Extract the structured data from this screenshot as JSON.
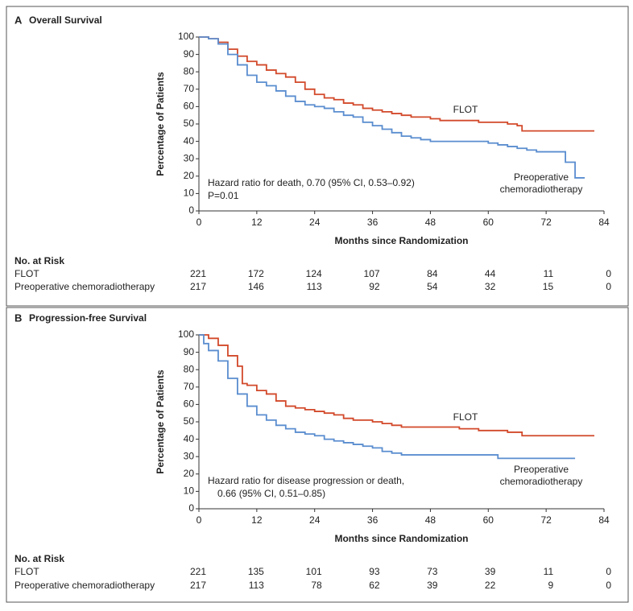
{
  "chart_data": [
    {
      "type": "line",
      "panel": "A",
      "title": "Overall Survival",
      "xlabel": "Months since Randomization",
      "ylabel": "Percentage of Patients",
      "xlim": [
        0,
        84
      ],
      "xticks": [
        0,
        12,
        24,
        36,
        48,
        60,
        72,
        84
      ],
      "ylim": [
        0,
        100
      ],
      "yticks": [
        0,
        10,
        20,
        30,
        40,
        50,
        60,
        70,
        80,
        90,
        100
      ],
      "step": true,
      "series": [
        {
          "name": "FLOT",
          "color": "#d2492a",
          "x": [
            0,
            2,
            4,
            6,
            8,
            10,
            12,
            14,
            16,
            18,
            20,
            22,
            24,
            26,
            28,
            30,
            32,
            34,
            36,
            38,
            40,
            42,
            44,
            48,
            50,
            58,
            64,
            66,
            67,
            82
          ],
          "values": [
            100,
            99,
            97,
            93,
            89,
            86,
            84,
            81,
            79,
            77,
            74,
            70,
            67,
            65,
            64,
            62,
            61,
            59,
            58,
            57,
            56,
            55,
            54,
            53,
            52,
            51,
            50,
            49,
            46,
            46
          ]
        },
        {
          "name": "Preoperative chemoradiotherapy",
          "color": "#5a8dcf",
          "x": [
            0,
            2,
            4,
            6,
            8,
            10,
            12,
            14,
            16,
            18,
            20,
            22,
            24,
            26,
            28,
            30,
            32,
            34,
            36,
            38,
            40,
            42,
            44,
            46,
            48,
            60,
            62,
            64,
            66,
            68,
            70,
            76,
            78,
            80
          ],
          "values": [
            100,
            99,
            96,
            90,
            84,
            78,
            74,
            72,
            69,
            66,
            63,
            61,
            60,
            59,
            57,
            55,
            54,
            51,
            49,
            47,
            45,
            43,
            42,
            41,
            40,
            39,
            38,
            37,
            36,
            35,
            34,
            28,
            19,
            19
          ]
        }
      ],
      "annotations": [
        "FLOT",
        "Preoperative",
        "chemoradiotherapy",
        "Hazard ratio for death, 0.70 (95% CI, 0.53–0.92)",
        "P=0.01"
      ],
      "risk_table": {
        "title": "No. at Risk",
        "rows": [
          {
            "name": "FLOT",
            "values": [
              221,
              172,
              124,
              107,
              84,
              44,
              11,
              0
            ]
          },
          {
            "name": "Preoperative chemoradiotherapy",
            "values": [
              217,
              146,
              113,
              92,
              54,
              32,
              15,
              0
            ]
          }
        ]
      }
    },
    {
      "type": "line",
      "panel": "B",
      "title": "Progression-free Survival",
      "xlabel": "Months since Randomization",
      "ylabel": "Percentage of Patients",
      "xlim": [
        0,
        84
      ],
      "xticks": [
        0,
        12,
        24,
        36,
        48,
        60,
        72,
        84
      ],
      "ylim": [
        0,
        100
      ],
      "yticks": [
        0,
        10,
        20,
        30,
        40,
        50,
        60,
        70,
        80,
        90,
        100
      ],
      "step": true,
      "series": [
        {
          "name": "FLOT",
          "color": "#d2492a",
          "x": [
            0,
            2,
            4,
            6,
            8,
            9,
            10,
            12,
            14,
            16,
            18,
            20,
            22,
            24,
            26,
            28,
            30,
            32,
            36,
            38,
            40,
            42,
            54,
            58,
            64,
            67,
            82
          ],
          "values": [
            100,
            98,
            94,
            88,
            82,
            72,
            71,
            68,
            66,
            62,
            59,
            58,
            57,
            56,
            55,
            54,
            52,
            51,
            50,
            49,
            48,
            47,
            46,
            45,
            44,
            42,
            42
          ]
        },
        {
          "name": "Preoperative chemoradiotherapy",
          "color": "#5a8dcf",
          "x": [
            0,
            1,
            2,
            4,
            6,
            8,
            10,
            12,
            14,
            16,
            18,
            20,
            22,
            24,
            26,
            28,
            30,
            32,
            34,
            36,
            38,
            40,
            42,
            62,
            78
          ],
          "values": [
            100,
            95,
            91,
            85,
            75,
            66,
            59,
            54,
            51,
            48,
            46,
            44,
            43,
            42,
            40,
            39,
            38,
            37,
            36,
            35,
            33,
            32,
            31,
            29,
            29
          ]
        }
      ],
      "annotations": [
        "FLOT",
        "Preoperative",
        "chemoradiotherapy",
        "Hazard ratio for disease progression or death,",
        "0.66 (95% CI, 0.51–0.85)"
      ],
      "risk_table": {
        "title": "No. at Risk",
        "rows": [
          {
            "name": "FLOT",
            "values": [
              221,
              135,
              101,
              93,
              73,
              39,
              11,
              0
            ]
          },
          {
            "name": "Preoperative chemoradiotherapy",
            "values": [
              217,
              113,
              78,
              62,
              39,
              22,
              9,
              0
            ]
          }
        ]
      }
    }
  ]
}
